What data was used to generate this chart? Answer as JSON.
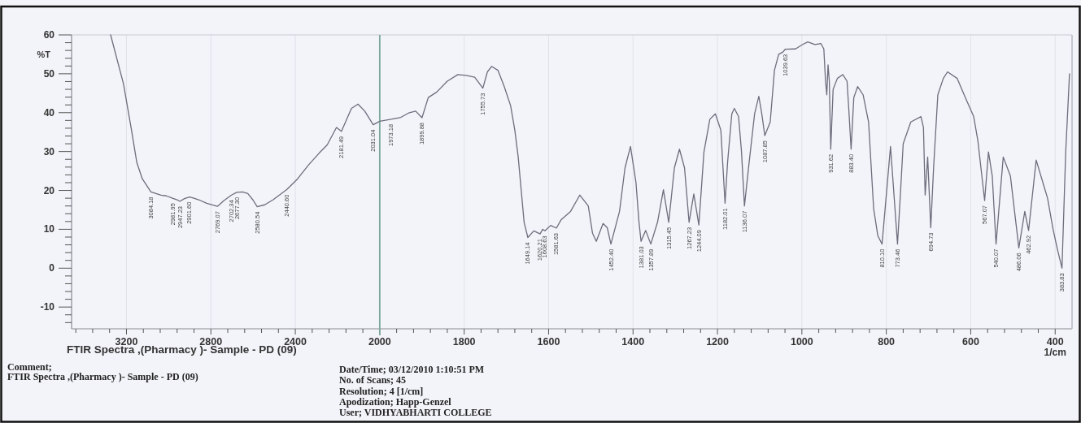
{
  "chart_data": [
    {
      "type": "line",
      "title": "FTIR Spectra ,(Pharmacy )- Sample - PD (09)",
      "ylabel": "%T",
      "x": [
        3275,
        3214,
        3176,
        3151,
        3125,
        3084.18,
        3036,
        3011,
        2981.95,
        2960,
        2947.23,
        2925,
        2901.6,
        2880,
        2858,
        2820,
        2769.07,
        2738,
        2702.34,
        2677.3,
        2650,
        2625,
        2600,
        2580.54,
        2545,
        2505,
        2440.6,
        2389,
        2338,
        2287,
        2249,
        2205,
        2181.49,
        2134,
        2103,
        2071,
        2031.04,
        2000
      ],
      "series": [
        {
          "color": "#6d6d7d",
          "values": [
            60,
            47.4,
            35.5,
            27.2,
            23.0,
            19.6,
            18.8,
            18.6,
            18.0,
            17.6,
            17.2,
            17.9,
            18.3,
            18.0,
            17.6,
            16.7,
            15.9,
            17.4,
            18.8,
            19.5,
            19.6,
            19.2,
            17.5,
            15.8,
            16.3,
            17.6,
            20.2,
            23.0,
            26.5,
            29.6,
            31.7,
            36.2,
            35.2,
            41.1,
            42.2,
            40.4,
            36.9,
            37.8
          ]
        }
      ],
      "xlim": [
        3460,
        2000
      ],
      "xticks": [
        {
          "value": 3440,
          "label": null
        },
        {
          "value": 3360,
          "label": null
        },
        {
          "value": 3280,
          "label": null
        },
        3200,
        {
          "value": 3120,
          "label": null
        },
        {
          "value": 3040,
          "label": null
        },
        {
          "value": 2960,
          "label": null
        },
        {
          "value": 2880,
          "label": null
        },
        2800,
        {
          "value": 2720,
          "label": null
        },
        {
          "value": 2640,
          "label": null
        },
        {
          "value": 2560,
          "label": null
        },
        {
          "value": 2480,
          "label": null
        },
        2400,
        {
          "value": 2320,
          "label": null
        },
        {
          "value": 2240,
          "label": null
        },
        {
          "value": 2160,
          "label": null
        },
        {
          "value": 2080,
          "label": null
        },
        2000
      ],
      "ylim": [
        -15.6,
        60
      ],
      "yticks": [
        {
          "value": -14,
          "label": null
        },
        {
          "value": -12,
          "label": null
        },
        -10,
        {
          "value": -8,
          "label": null
        },
        {
          "value": -6,
          "label": null
        },
        {
          "value": -4,
          "label": null
        },
        {
          "value": -2,
          "label": null
        },
        0,
        {
          "value": 2,
          "label": null
        },
        {
          "value": 4,
          "label": null
        },
        {
          "value": 6,
          "label": null
        },
        {
          "value": 8,
          "label": null
        },
        10,
        {
          "value": 12,
          "label": null
        },
        {
          "value": 14,
          "label": null
        },
        {
          "value": 16,
          "label": null
        },
        {
          "value": 18,
          "label": null
        },
        20,
        {
          "value": 22,
          "label": null
        },
        {
          "value": 24,
          "label": null
        },
        {
          "value": 26,
          "label": null
        },
        {
          "value": 28,
          "label": null
        },
        30,
        {
          "value": 32,
          "label": null
        },
        {
          "value": 34,
          "label": null
        },
        {
          "value": 36,
          "label": null
        },
        {
          "value": 38,
          "label": null
        },
        40,
        {
          "value": 42,
          "label": null
        },
        {
          "value": 44,
          "label": null
        },
        {
          "value": 46,
          "label": null
        },
        {
          "value": 48,
          "label": null
        },
        50,
        {
          "value": 52,
          "label": null
        },
        {
          "value": 54,
          "label": null
        },
        {
          "value": 56,
          "label": null
        },
        {
          "value": 58,
          "label": null
        },
        60
      ],
      "grid": "x",
      "annotations": [
        {
          "text": "3084.18",
          "x": 3084.18,
          "y": 19.6
        },
        {
          "text": "2981.95",
          "x": 2981.95,
          "y": 18.0
        },
        {
          "text": "2947.23",
          "x": 2947.23,
          "y": 17.2
        },
        {
          "text": "2901.60",
          "x": 2901.6,
          "y": 18.3
        },
        {
          "text": "2769.07",
          "x": 2769.07,
          "y": 15.9
        },
        {
          "text": "2702.34",
          "x": 2702.34,
          "y": 18.8
        },
        {
          "text": "2677.30",
          "x": 2677.3,
          "y": 19.5
        },
        {
          "text": "2580.54",
          "x": 2580.54,
          "y": 15.8
        },
        {
          "text": "2440.60",
          "x": 2440.6,
          "y": 20.2
        },
        {
          "text": "2181.49",
          "x": 2181.49,
          "y": 35.2
        },
        {
          "text": "2031.04",
          "x": 2031.04,
          "y": 36.9
        },
        "Comment;",
        "FTIR Spectra ,(Pharmacy )- Sample - PD (09)",
        "Date/Time; 03/12/2010 1:10:51 PM",
        "No. of Scans; 45",
        "Resolution; 4 [1/cm]",
        "Apodization; Happ-Genzel",
        "User; VIDHYABHARTI COLLEGE"
      ]
    },
    {
      "type": "line",
      "xlabel": "1/cm",
      "x": [
        2000,
        1973.18,
        1950,
        1930,
        1915,
        1899.88,
        1885,
        1865,
        1840,
        1815,
        1795,
        1775,
        1755.73,
        1745,
        1735,
        1720,
        1705,
        1690,
        1680,
        1672,
        1665,
        1658,
        1649.14,
        1635,
        1620.21,
        1614,
        1608.63,
        1595,
        1581.63,
        1570,
        1548,
        1526,
        1506,
        1496,
        1487,
        1471,
        1461,
        1452.4,
        1432,
        1419,
        1406,
        1393,
        1386,
        1381.03,
        1370,
        1357.89,
        1342,
        1328,
        1315.45,
        1302,
        1290,
        1278,
        1267.23,
        1256,
        1244.09,
        1232,
        1218,
        1205,
        1192,
        1182.01,
        1176,
        1166,
        1160,
        1150,
        1143,
        1136.07,
        1125,
        1112,
        1102,
        1095,
        1087.85,
        1075,
        1065,
        1055,
        1045,
        1039.63,
        1015,
        999,
        986,
        969,
        955,
        948,
        944,
        941,
        938,
        935,
        931.62,
        926,
        916,
        903,
        893,
        889,
        883.4,
        877,
        868,
        855,
        842,
        830,
        820,
        810.1,
        790,
        773.46,
        766,
        760,
        742,
        718,
        712,
        708,
        702,
        694.73,
        688,
        678,
        665,
        655,
        632,
        610,
        593,
        583,
        567.07,
        558,
        549,
        540.07,
        523,
        506,
        486.06,
        472,
        462.92,
        445,
        426,
        418,
        405,
        395,
        383.83,
        375,
        366
      ],
      "series": [
        {
          "color": "#6d6d7d",
          "values": [
            37.8,
            38.3,
            38.8,
            40.0,
            40.4,
            38.7,
            43.9,
            45.3,
            48.1,
            49.8,
            49.6,
            49.1,
            46.3,
            50.5,
            51.9,
            50.9,
            46.7,
            41.8,
            35.5,
            28.6,
            20.2,
            11.8,
            7.9,
            9.6,
            8.8,
            10.0,
            9.6,
            11.0,
            10.3,
            12.5,
            14.6,
            18.8,
            16.0,
            9.0,
            6.9,
            11.5,
            10.4,
            6.2,
            14.6,
            25.8,
            31.3,
            22.0,
            12.0,
            6.9,
            9.7,
            6.2,
            11.8,
            20.2,
            11.8,
            25.8,
            30.6,
            25.8,
            11.8,
            19.1,
            11.1,
            29.9,
            38.3,
            39.7,
            35.5,
            16.7,
            27.2,
            39.7,
            41.1,
            39.0,
            29.9,
            16.0,
            27.2,
            39.7,
            44.2,
            39.7,
            34.1,
            37.6,
            50.9,
            55.0,
            55.6,
            56.3,
            56.4,
            57.5,
            58.2,
            57.5,
            57.8,
            56.4,
            48.1,
            44.6,
            52.3,
            48.1,
            30.6,
            46.0,
            48.8,
            49.8,
            48.1,
            41.1,
            30.6,
            43.9,
            46.7,
            44.6,
            37.6,
            15.3,
            8.3,
            6.2,
            31.3,
            6.2,
            20.2,
            32.0,
            37.6,
            39.0,
            36.2,
            18.8,
            28.6,
            10.4,
            25.8,
            44.6,
            48.8,
            50.5,
            48.8,
            43.2,
            39.0,
            32.7,
            17.4,
            29.9,
            23.7,
            6.2,
            28.6,
            23.7,
            5.2,
            14.6,
            9.7,
            27.8,
            20.9,
            18.0,
            10.0,
            5.0,
            0.0,
            30.0,
            50.0
          ]
        }
      ],
      "xlim": [
        2000,
        360
      ],
      "xticks": [
        {
          "value": 1960,
          "label": null
        },
        {
          "value": 1920,
          "label": null
        },
        {
          "value": 1880,
          "label": null
        },
        {
          "value": 1840,
          "label": null
        },
        1800,
        {
          "value": 1760,
          "label": null
        },
        {
          "value": 1720,
          "label": null
        },
        {
          "value": 1680,
          "label": null
        },
        {
          "value": 1640,
          "label": null
        },
        1600,
        {
          "value": 1560,
          "label": null
        },
        {
          "value": 1520,
          "label": null
        },
        {
          "value": 1480,
          "label": null
        },
        {
          "value": 1440,
          "label": null
        },
        1400,
        {
          "value": 1360,
          "label": null
        },
        {
          "value": 1320,
          "label": null
        },
        {
          "value": 1280,
          "label": null
        },
        {
          "value": 1240,
          "label": null
        },
        1200,
        {
          "value": 1160,
          "label": null
        },
        {
          "value": 1120,
          "label": null
        },
        {
          "value": 1080,
          "label": null
        },
        {
          "value": 1040,
          "label": null
        },
        1000,
        {
          "value": 960,
          "label": null
        },
        {
          "value": 920,
          "label": null
        },
        {
          "value": 880,
          "label": null
        },
        {
          "value": 840,
          "label": null
        },
        800,
        {
          "value": 760,
          "label": null
        },
        {
          "value": 720,
          "label": null
        },
        {
          "value": 680,
          "label": null
        },
        {
          "value": 640,
          "label": null
        },
        600,
        {
          "value": 560,
          "label": null
        },
        {
          "value": 520,
          "label": null
        },
        {
          "value": 480,
          "label": null
        },
        {
          "value": 440,
          "label": null
        },
        400
      ],
      "ylim": [
        -15.6,
        60
      ],
      "tick_labels": "x",
      "grid": "x",
      "annotations": [
        {
          "text": "1973.18",
          "x": 1973.18,
          "y": 38.3
        },
        {
          "text": "1899.88",
          "x": 1899.88,
          "y": 38.7
        },
        {
          "text": "1755.73",
          "x": 1755.73,
          "y": 46.3
        },
        {
          "text": "1649.14",
          "x": 1649.14,
          "y": 7.9
        },
        {
          "text": "1620.21",
          "x": 1620.21,
          "y": 8.8
        },
        {
          "text": "1608.63",
          "x": 1608.63,
          "y": 9.6
        },
        {
          "text": "1581.63",
          "x": 1581.63,
          "y": 10.3
        },
        {
          "text": "1452.40",
          "x": 1452.4,
          "y": 6.2
        },
        {
          "text": "1381.03",
          "x": 1381.03,
          "y": 6.9
        },
        {
          "text": "1357.89",
          "x": 1357.89,
          "y": 6.2
        },
        {
          "text": "1315.45",
          "x": 1315.45,
          "y": 11.8
        },
        {
          "text": "1267.23",
          "x": 1267.23,
          "y": 11.8
        },
        {
          "text": "1244.09",
          "x": 1244.09,
          "y": 11.1
        },
        {
          "text": "1182.01",
          "x": 1182.01,
          "y": 16.7
        },
        {
          "text": "1136.07",
          "x": 1136.07,
          "y": 16.0
        },
        {
          "text": "1087.85",
          "x": 1087.85,
          "y": 34.1
        },
        {
          "text": "1039.63",
          "x": 1039.63,
          "y": 56.3
        },
        {
          "text": "931.62",
          "x": 931.62,
          "y": 30.6
        },
        {
          "text": "883.40",
          "x": 883.4,
          "y": 30.6
        },
        {
          "text": "810.10",
          "x": 810.1,
          "y": 6.2
        },
        {
          "text": "773.46",
          "x": 773.46,
          "y": 6.2
        },
        {
          "text": "694.73",
          "x": 694.73,
          "y": 10.4
        },
        {
          "text": "567.07",
          "x": 567.07,
          "y": 17.4
        },
        {
          "text": "540.07",
          "x": 540.07,
          "y": 6.2
        },
        {
          "text": "486.06",
          "x": 486.06,
          "y": 5.2
        },
        {
          "text": "462.92",
          "x": 462.92,
          "y": 9.7
        },
        {
          "text": "383.83",
          "x": 383.83,
          "y": 0.0
        }
      ]
    }
  ]
}
